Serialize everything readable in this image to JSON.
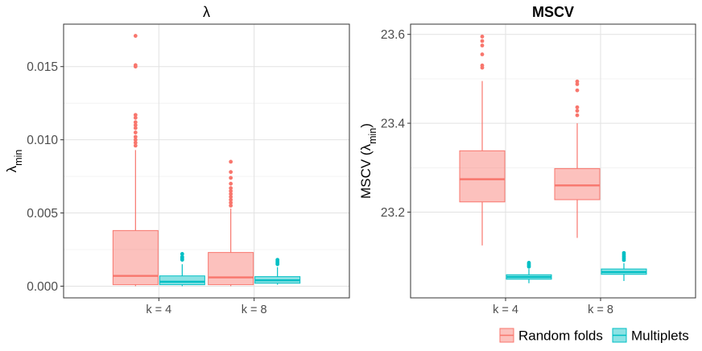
{
  "chart_data": [
    {
      "type": "box",
      "title": "λ",
      "ylabel_main": "λ",
      "ylabel_sub": "min",
      "categories": [
        "k = 4",
        "k = 8"
      ],
      "yticks": [
        0.0,
        0.005,
        0.01,
        0.015
      ],
      "ytick_labels": [
        "0.000",
        "0.005",
        "0.010",
        "0.015"
      ],
      "ylim": [
        -0.0008,
        0.0179
      ],
      "grid": true,
      "series": [
        {
          "name": "Random folds",
          "color": "#F8766D",
          "boxes": [
            {
              "q1": 0.0001,
              "median": 0.0007,
              "q3": 0.0038,
              "whisker_low": 0.0,
              "whisker_high": 0.0093,
              "outliers": [
                0.0171,
                0.0151,
                0.015,
                0.0117,
                0.0115,
                0.0112,
                0.011,
                0.0108,
                0.0105,
                0.0102,
                0.01,
                0.0098,
                0.0096
              ]
            },
            {
              "q1": 0.0001,
              "median": 0.0006,
              "q3": 0.0023,
              "whisker_low": 0.0,
              "whisker_high": 0.0053,
              "outliers": [
                0.0085,
                0.0078,
                0.0074,
                0.007,
                0.0067,
                0.0065,
                0.0063,
                0.0061,
                0.0059,
                0.0057,
                0.0055
              ]
            }
          ]
        },
        {
          "name": "Multiplets",
          "color": "#00BFC4",
          "boxes": [
            {
              "q1": 0.0001,
              "median": 0.0003,
              "q3": 0.0007,
              "whisker_low": 0.0,
              "whisker_high": 0.0015,
              "outliers": [
                0.0022,
                0.002,
                0.0019,
                0.0018
              ]
            },
            {
              "q1": 0.0002,
              "median": 0.0004,
              "q3": 0.00065,
              "whisker_low": 0.0001,
              "whisker_high": 0.0013,
              "outliers": [
                0.0018,
                0.0017,
                0.0016,
                0.0015
              ]
            }
          ]
        }
      ]
    },
    {
      "type": "box",
      "title": "MSCV",
      "ylabel_main": "MSCV (λ",
      "ylabel_sub": "min",
      "ylabel_end": ")",
      "categories": [
        "k = 4",
        "k = 8"
      ],
      "yticks": [
        23.2,
        23.4,
        23.6
      ],
      "ytick_labels": [
        "23.2",
        "23.4",
        "23.6"
      ],
      "ylim": [
        23.007,
        23.623
      ],
      "grid": true,
      "series": [
        {
          "name": "Random folds",
          "color": "#F8766D",
          "boxes": [
            {
              "q1": 23.223,
              "median": 23.274,
              "q3": 23.338,
              "whisker_low": 23.125,
              "whisker_high": 23.495,
              "outliers": [
                23.595,
                23.585,
                23.575,
                23.555,
                23.53,
                23.525
              ]
            },
            {
              "q1": 23.228,
              "median": 23.26,
              "q3": 23.298,
              "whisker_low": 23.142,
              "whisker_high": 23.4,
              "outliers": [
                23.494,
                23.488,
                23.474,
                23.436,
                23.428,
                23.418
              ]
            }
          ]
        },
        {
          "name": "Multiplets",
          "color": "#00BFC4",
          "boxes": [
            {
              "q1": 23.049,
              "median": 23.054,
              "q3": 23.059,
              "whisker_low": 23.04,
              "whisker_high": 23.072,
              "outliers": [
                23.086,
                23.083,
                23.08,
                23.077
              ]
            },
            {
              "q1": 23.06,
              "median": 23.065,
              "q3": 23.072,
              "whisker_low": 23.045,
              "whisker_high": 23.085,
              "outliers": [
                23.108,
                23.104,
                23.1,
                23.096,
                23.092
              ]
            }
          ]
        }
      ]
    }
  ],
  "legend": {
    "position": "bottom-right",
    "items": [
      {
        "label": "Random folds",
        "color": "#F8766D"
      },
      {
        "label": "Multiplets",
        "color": "#00BFC4"
      }
    ]
  }
}
